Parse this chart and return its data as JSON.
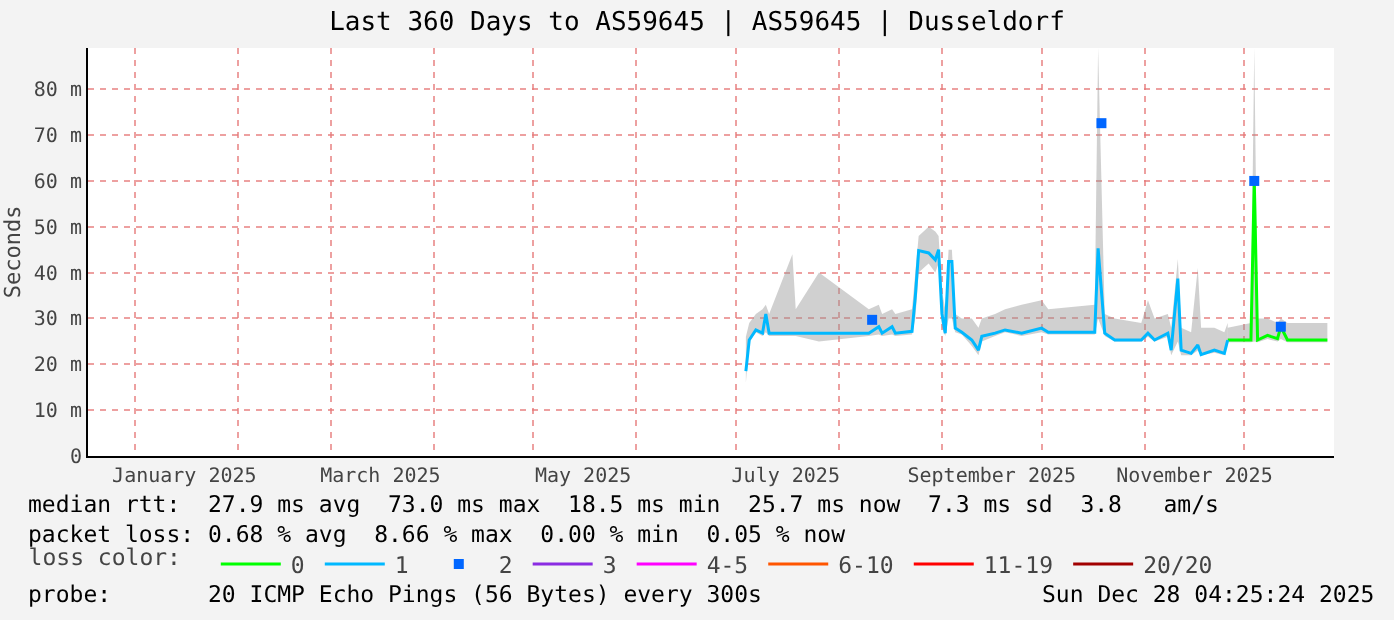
{
  "chart_data": {
    "type": "line",
    "title": "Last 360 Days to AS59645 | AS59645 | Dusseldorf",
    "ylabel": "Seconds",
    "legend_title": "loss color:",
    "legend": "bottom",
    "grid": true,
    "marker": "none",
    "line_style": "solid",
    "xlim": [
      "2024-12-18",
      "2025-12-28"
    ],
    "xticks": [
      {
        "value": "2025-01-16",
        "label": "January 2025"
      },
      {
        "value": "2025-03-16",
        "label": "March 2025"
      },
      {
        "value": "2025-05-16",
        "label": "May 2025"
      },
      {
        "value": "2025-07-16",
        "label": "July 2025"
      },
      {
        "value": "2025-09-16",
        "label": "September 2025"
      },
      {
        "value": "2025-11-16",
        "label": "November 2025"
      }
    ],
    "ylim": [
      0,
      89
    ],
    "yticks": [
      0,
      {
        "value": 10,
        "label": "10 m"
      },
      {
        "value": 20,
        "label": "20 m"
      },
      {
        "value": 30,
        "label": "30 m"
      },
      {
        "value": 40,
        "label": "40 m"
      },
      {
        "value": 50,
        "label": "50 m"
      },
      {
        "value": 60,
        "label": "60 m"
      },
      {
        "value": 70,
        "label": "70 m"
      },
      {
        "value": 80,
        "label": "80 m"
      }
    ],
    "series": [
      {
        "name": "0",
        "color": "#00ff00",
        "x": [
          "2025-11-26",
          "2025-12-03",
          "2025-12-04",
          "2025-12-05",
          "2025-12-08",
          "2025-12-11",
          "2025-12-12",
          "2025-12-14",
          "2025-12-26"
        ],
        "values": [
          25.3,
          25.3,
          60,
          25.3,
          26.3,
          25.6,
          28.2,
          25.3,
          25.3
        ],
        "lower": [
          24.8,
          24.8,
          25,
          24.8,
          25.5,
          25,
          25.5,
          24.8,
          24.8
        ],
        "upper": [
          28,
          29,
          89,
          30,
          30,
          29,
          30,
          29,
          29
        ]
      },
      {
        "name": "1",
        "color": "#00b8ff",
        "x": [
          "2025-07-04",
          "2025-07-05",
          "2025-07-07",
          "2025-07-09",
          "2025-07-10",
          "2025-07-11",
          "2025-07-18",
          "2025-07-19",
          "2025-07-26",
          "2025-08-10",
          "2025-08-13",
          "2025-08-14",
          "2025-08-17",
          "2025-08-18",
          "2025-08-23",
          "2025-08-24",
          "2025-08-25",
          "2025-08-28",
          "2025-08-30",
          "2025-08-31",
          "2025-09-01",
          "2025-09-02",
          "2025-09-03",
          "2025-09-04",
          "2025-09-05",
          "2025-09-07",
          "2025-09-10",
          "2025-09-12",
          "2025-09-13",
          "2025-09-17",
          "2025-09-20",
          "2025-09-25",
          "2025-10-01",
          "2025-10-03",
          "2025-10-17",
          "2025-10-18",
          "2025-10-20",
          "2025-10-23",
          "2025-10-31",
          "2025-11-02",
          "2025-11-04",
          "2025-11-08",
          "2025-11-09",
          "2025-11-11",
          "2025-11-12",
          "2025-11-15",
          "2025-11-17",
          "2025-11-18",
          "2025-11-22",
          "2025-11-25",
          "2025-11-26"
        ],
        "values": [
          18.5,
          25.3,
          27.5,
          26.8,
          31,
          26.8,
          26.8,
          26.8,
          26.8,
          26.8,
          28.2,
          26.8,
          28.2,
          26.8,
          27.2,
          34.8,
          44.8,
          44.3,
          42.8,
          45,
          31,
          26.8,
          42.4,
          42.4,
          27.9,
          27,
          25.3,
          23.1,
          26.1,
          26.8,
          27.5,
          26.8,
          27.9,
          27,
          27,
          45.3,
          26.8,
          25.3,
          25.3,
          26.8,
          25.3,
          26.8,
          23.1,
          38.7,
          23.1,
          22.4,
          24.2,
          22.1,
          23.1,
          22.4,
          25.3
        ],
        "lower": [
          16,
          25,
          27,
          26.2,
          27,
          26.2,
          26.2,
          26.2,
          25,
          26.2,
          26.5,
          26.2,
          26.5,
          26.2,
          26.5,
          30,
          40,
          42,
          40,
          42,
          28,
          26.2,
          30,
          30,
          27,
          26.5,
          24,
          22,
          25,
          26.2,
          27,
          26.2,
          27,
          26.5,
          26.5,
          30,
          26.2,
          25,
          25,
          26,
          25,
          26,
          22,
          25,
          22,
          22,
          23,
          22,
          22.5,
          22,
          24.8
        ],
        "upper": [
          26,
          29,
          31,
          32,
          33,
          31,
          44,
          32,
          40,
          32,
          33,
          31,
          32,
          31,
          32,
          40,
          48,
          50,
          49,
          48,
          36,
          32,
          45,
          45,
          31,
          30,
          30,
          28,
          30,
          31,
          32,
          33,
          34,
          32,
          33,
          89,
          31,
          30,
          29,
          34,
          30,
          31,
          28,
          43,
          28,
          27,
          41,
          28,
          28,
          27,
          29
        ]
      },
      {
        "name": "2",
        "color": "#0066ff",
        "type": "scatter",
        "marker": "square",
        "x": [
          "2025-08-11",
          "2025-10-19",
          "2025-12-04",
          "2025-12-12"
        ],
        "values": [
          29.7,
          72.6,
          60,
          28.2
        ]
      },
      {
        "name": "3",
        "color": "#8a2be2"
      },
      {
        "name": "4-5",
        "color": "#ff00ff"
      },
      {
        "name": "6-10",
        "color": "#ff5500"
      },
      {
        "name": "11-19",
        "color": "#ff0000"
      },
      {
        "name": "20/20",
        "color": "#a10000"
      }
    ],
    "annotations": [
      "median rtt:  27.9 ms avg  73.0 ms max  18.5 ms min  25.7 ms now  7.3 ms sd  3.8   am/s",
      "packet loss: 0.68 % avg  8.66 % max  0.00 % min  0.05 % now",
      "probe:       20 ICMP Echo Pings (56 Bytes) every 300s",
      "Sun Dec 28 04:25:24 2025"
    ]
  }
}
